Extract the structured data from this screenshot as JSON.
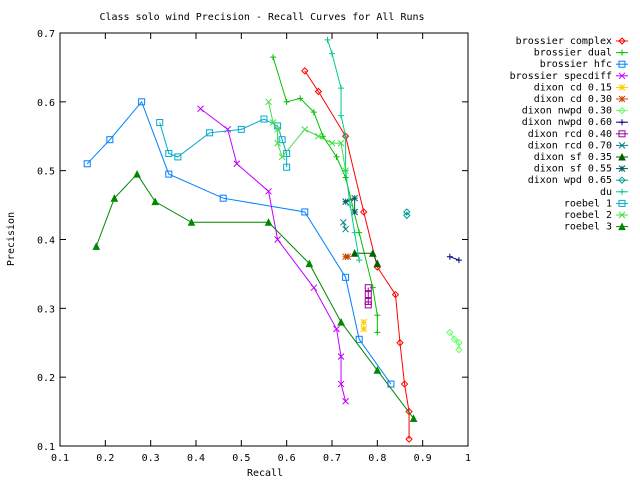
{
  "chart_data": {
    "type": "line",
    "title": "Class solo wind Precision - Recall Curves for All Runs",
    "xlabel": "Recall",
    "ylabel": "Precision",
    "xlim": [
      0.1,
      1.0
    ],
    "ylim": [
      0.1,
      0.7
    ],
    "xticks": [
      "0.1",
      "0.2",
      "0.3",
      "0.4",
      "0.5",
      "0.6",
      "0.7",
      "0.8",
      "0.9",
      "1"
    ],
    "yticks": [
      "0.1",
      "0.2",
      "0.3",
      "0.4",
      "0.5",
      "0.6",
      "0.7"
    ],
    "grid": false,
    "legend_position": "right",
    "series": [
      {
        "name": "brossier complex",
        "color": "#ff0000",
        "marker": "diamond",
        "points": [
          [
            0.64,
            0.645
          ],
          [
            0.67,
            0.615
          ],
          [
            0.73,
            0.55
          ],
          [
            0.77,
            0.44
          ],
          [
            0.8,
            0.36
          ],
          [
            0.84,
            0.32
          ],
          [
            0.85,
            0.25
          ],
          [
            0.86,
            0.19
          ],
          [
            0.87,
            0.15
          ],
          [
            0.87,
            0.11
          ]
        ]
      },
      {
        "name": "brossier dual",
        "color": "#00c000",
        "marker": "plus",
        "points": [
          [
            0.57,
            0.665
          ],
          [
            0.6,
            0.6
          ],
          [
            0.63,
            0.605
          ],
          [
            0.66,
            0.585
          ],
          [
            0.68,
            0.55
          ],
          [
            0.71,
            0.52
          ],
          [
            0.73,
            0.49
          ],
          [
            0.76,
            0.41
          ],
          [
            0.79,
            0.33
          ],
          [
            0.8,
            0.29
          ],
          [
            0.8,
            0.265
          ]
        ]
      },
      {
        "name": "brossier hfc",
        "color": "#0080ff",
        "marker": "square",
        "points": [
          [
            0.16,
            0.51
          ],
          [
            0.21,
            0.545
          ],
          [
            0.28,
            0.6
          ],
          [
            0.34,
            0.495
          ],
          [
            0.46,
            0.46
          ],
          [
            0.64,
            0.44
          ],
          [
            0.73,
            0.345
          ],
          [
            0.76,
            0.255
          ],
          [
            0.83,
            0.19
          ]
        ]
      },
      {
        "name": "brossier specdiff",
        "color": "#c000ff",
        "marker": "cross",
        "points": [
          [
            0.41,
            0.59
          ],
          [
            0.47,
            0.56
          ],
          [
            0.49,
            0.51
          ],
          [
            0.56,
            0.47
          ],
          [
            0.58,
            0.4
          ],
          [
            0.66,
            0.33
          ],
          [
            0.71,
            0.27
          ],
          [
            0.72,
            0.23
          ],
          [
            0.72,
            0.19
          ],
          [
            0.73,
            0.165
          ]
        ]
      },
      {
        "name": "dixon cd 0.15",
        "color": "#ffcc00",
        "marker": "star",
        "points": [
          [
            0.77,
            0.28
          ],
          [
            0.77,
            0.27
          ]
        ]
      },
      {
        "name": "dixon cd 0.30",
        "color": "#cc4400",
        "marker": "star",
        "points": [
          [
            0.73,
            0.375
          ],
          [
            0.735,
            0.375
          ]
        ]
      },
      {
        "name": "dixon nwpd 0.30",
        "color": "#66ff66",
        "marker": "diamond",
        "points": [
          [
            0.96,
            0.265
          ],
          [
            0.97,
            0.255
          ],
          [
            0.98,
            0.25
          ],
          [
            0.98,
            0.24
          ]
        ]
      },
      {
        "name": "dixon nwpd 0.60",
        "color": "#000080",
        "marker": "plus",
        "points": [
          [
            0.96,
            0.375
          ],
          [
            0.98,
            0.37
          ]
        ]
      },
      {
        "name": "dixon rcd 0.40",
        "color": "#a000a0",
        "marker": "square",
        "points": [
          [
            0.78,
            0.33
          ],
          [
            0.78,
            0.32
          ],
          [
            0.78,
            0.31
          ],
          [
            0.78,
            0.305
          ]
        ]
      },
      {
        "name": "dixon rcd 0.70",
        "color": "#008080",
        "marker": "cross",
        "points": [
          [
            0.725,
            0.425
          ],
          [
            0.73,
            0.415
          ]
        ]
      },
      {
        "name": "dixon sf 0.35",
        "color": "#006000",
        "marker": "triangle",
        "points": [
          [
            0.75,
            0.38
          ],
          [
            0.79,
            0.38
          ],
          [
            0.8,
            0.365
          ]
        ]
      },
      {
        "name": "dixon sf 0.55",
        "color": "#006060",
        "marker": "star",
        "points": [
          [
            0.73,
            0.455
          ],
          [
            0.75,
            0.46
          ],
          [
            0.75,
            0.44
          ]
        ]
      },
      {
        "name": "dixon wpd 0.65",
        "color": "#009999",
        "marker": "diamond",
        "points": [
          [
            0.865,
            0.44
          ],
          [
            0.865,
            0.435
          ]
        ]
      },
      {
        "name": "du",
        "color": "#00cc88",
        "marker": "plus",
        "points": [
          [
            0.69,
            0.69
          ],
          [
            0.7,
            0.67
          ],
          [
            0.72,
            0.62
          ],
          [
            0.72,
            0.58
          ],
          [
            0.73,
            0.55
          ],
          [
            0.73,
            0.5
          ],
          [
            0.74,
            0.45
          ],
          [
            0.75,
            0.41
          ],
          [
            0.76,
            0.37
          ]
        ]
      },
      {
        "name": "roebel 1",
        "color": "#00aacc",
        "marker": "square",
        "points": [
          [
            0.32,
            0.57
          ],
          [
            0.34,
            0.525
          ],
          [
            0.36,
            0.52
          ],
          [
            0.43,
            0.555
          ],
          [
            0.5,
            0.56
          ],
          [
            0.55,
            0.575
          ],
          [
            0.58,
            0.565
          ],
          [
            0.59,
            0.545
          ],
          [
            0.6,
            0.525
          ],
          [
            0.6,
            0.505
          ]
        ]
      },
      {
        "name": "roebel 2",
        "color": "#44dd44",
        "marker": "cross",
        "points": [
          [
            0.56,
            0.6
          ],
          [
            0.57,
            0.57
          ],
          [
            0.58,
            0.56
          ],
          [
            0.58,
            0.54
          ],
          [
            0.59,
            0.52
          ],
          [
            0.64,
            0.56
          ],
          [
            0.67,
            0.55
          ],
          [
            0.7,
            0.54
          ],
          [
            0.72,
            0.54
          ],
          [
            0.73,
            0.5
          ]
        ]
      },
      {
        "name": "roebel 3",
        "color": "#008800",
        "marker": "triangle",
        "points": [
          [
            0.18,
            0.39
          ],
          [
            0.22,
            0.46
          ],
          [
            0.27,
            0.495
          ],
          [
            0.31,
            0.455
          ],
          [
            0.39,
            0.425
          ],
          [
            0.56,
            0.425
          ],
          [
            0.65,
            0.365
          ],
          [
            0.72,
            0.28
          ],
          [
            0.8,
            0.21
          ],
          [
            0.88,
            0.14
          ]
        ]
      }
    ]
  }
}
